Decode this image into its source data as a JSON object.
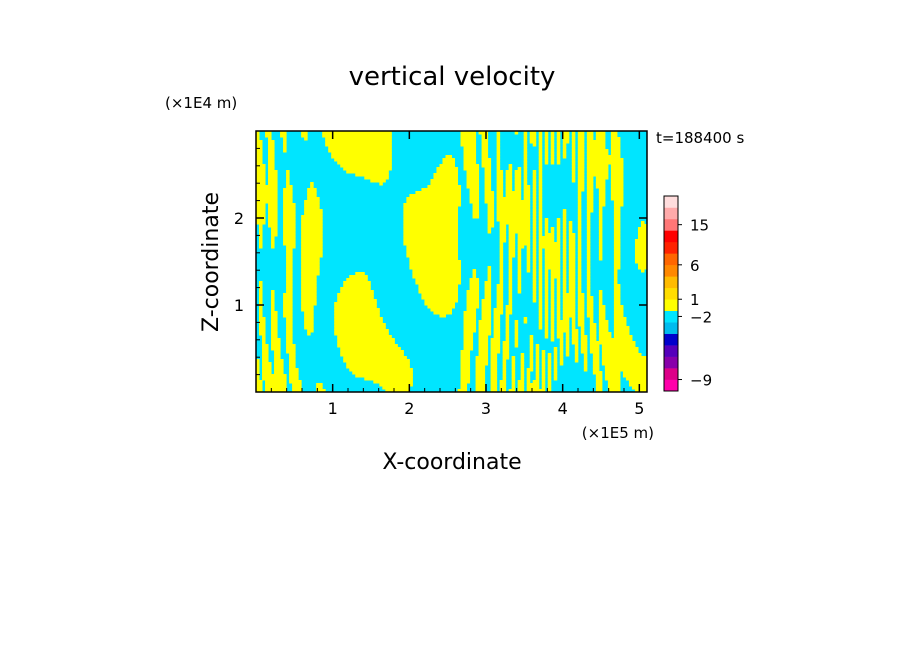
{
  "chart_data": {
    "type": "heatmap",
    "title": "vertical velocity",
    "xlabel": "X-coordinate",
    "ylabel": "Z-coordinate",
    "x_scale_label": "(×1E5 m)",
    "y_scale_label": "(×1E4 m)",
    "time_label": "t=188400 s",
    "xlim": [
      0,
      5.1
    ],
    "ylim": [
      0,
      3.0
    ],
    "x_ticks": [
      1,
      2,
      3,
      4,
      5
    ],
    "y_ticks": [
      1,
      2
    ],
    "x_tick_labels": [
      "1",
      "2",
      "3",
      "4",
      "5"
    ],
    "y_tick_labels": [
      "1",
      "2"
    ],
    "field_colors": {
      "positive": "#ffff00",
      "negative": "#00e5ff"
    },
    "colorbar": {
      "levels": [
        {
          "color": "#ff00aa"
        },
        {
          "color": "#dd0088"
        },
        {
          "color": "#8800aa"
        },
        {
          "color": "#5500bb"
        },
        {
          "color": "#0000cc"
        },
        {
          "color": "#00bbee"
        },
        {
          "color": "#00e5ff"
        },
        {
          "color": "#ffff00"
        },
        {
          "color": "#ffdd00"
        },
        {
          "color": "#ffbb00"
        },
        {
          "color": "#ff8800"
        },
        {
          "color": "#ff6600"
        },
        {
          "color": "#ff2200"
        },
        {
          "color": "#ff0000"
        },
        {
          "color": "#ff7777"
        },
        {
          "color": "#ffaaaa"
        },
        {
          "color": "#ffdddd"
        }
      ],
      "tick_labels": [
        {
          "text": "15",
          "at_level": 14.5
        },
        {
          "text": "6",
          "at_level": 11.0
        },
        {
          "text": "1",
          "at_level": 8.0
        },
        {
          "text": "−2",
          "at_level": 6.5
        },
        {
          "text": "−9",
          "at_level": 1.0
        }
      ]
    }
  }
}
